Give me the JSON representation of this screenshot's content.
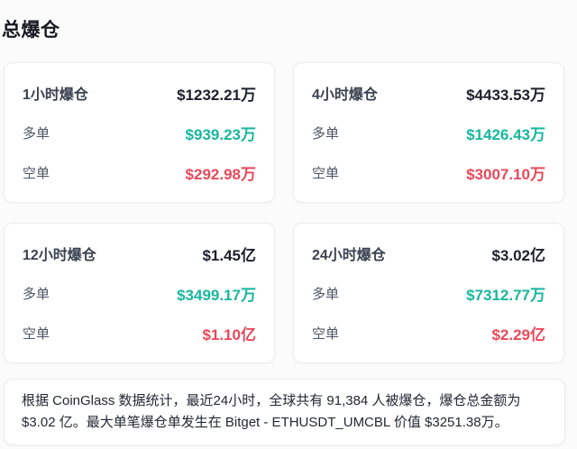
{
  "page": {
    "title": "总爆仓"
  },
  "colors": {
    "long": "#17b79e",
    "short": "#e8495a",
    "card_border": "#ececec",
    "background": "#fbfbfb"
  },
  "cards": [
    {
      "period_label": "1小时爆仓",
      "total": "$1232.21万",
      "long_label": "多单",
      "long_value": "$939.23万",
      "short_label": "空单",
      "short_value": "$292.98万"
    },
    {
      "period_label": "4小时爆仓",
      "total": "$4433.53万",
      "long_label": "多单",
      "long_value": "$1426.43万",
      "short_label": "空单",
      "short_value": "$3007.10万"
    },
    {
      "period_label": "12小时爆仓",
      "total": "$1.45亿",
      "long_label": "多单",
      "long_value": "$3499.17万",
      "short_label": "空单",
      "short_value": "$1.10亿"
    },
    {
      "period_label": "24小时爆仓",
      "total": "$3.02亿",
      "long_label": "多单",
      "long_value": "$7312.77万",
      "short_label": "空单",
      "short_value": "$2.29亿"
    }
  ],
  "footer": {
    "text": "根据 CoinGlass 数据统计，最近24小时，全球共有 91,384 人被爆仓，爆仓总金额为 $3.02 亿。最大单笔爆仓单发生在 Bitget - ETHUSDT_UMCBL 价值 $3251.38万。"
  }
}
